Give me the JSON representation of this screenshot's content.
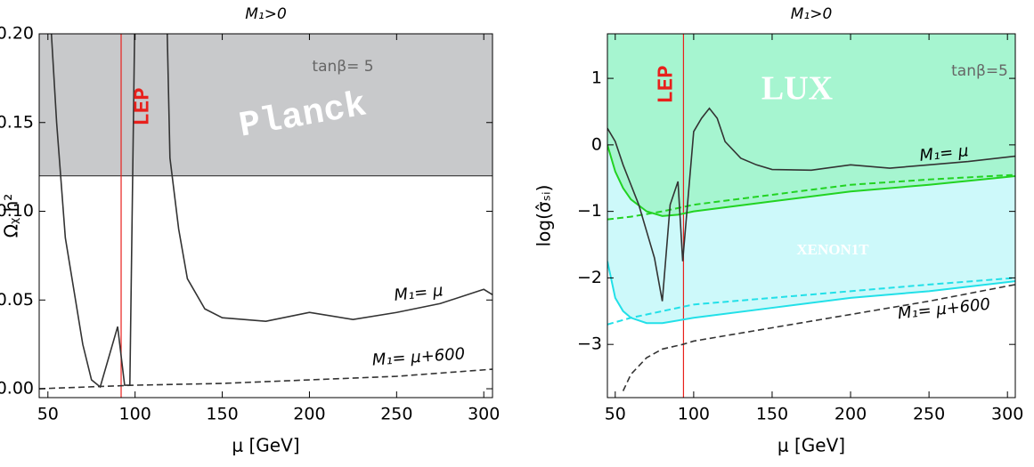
{
  "chart_data": [
    {
      "type": "line",
      "title": "M₁>0",
      "x_label": "μ [GeV]",
      "y_label": "Ωᵪ h²",
      "xlim": [
        45,
        305
      ],
      "ylim": [
        -0.005,
        0.2
      ],
      "xticks": [
        50,
        100,
        150,
        200,
        250,
        300
      ],
      "yticks": [
        {
          "value": 0,
          "label": "0.00"
        },
        {
          "value": 0.05,
          "label": "0.05"
        },
        {
          "value": 0.1,
          "label": "0.10"
        },
        {
          "value": 0.15,
          "label": "0.15"
        },
        {
          "value": 0.2,
          "label": "0.20"
        }
      ],
      "band": {
        "label": "Planck",
        "from": 0.12,
        "color": "#c8c9cb"
      },
      "lep": {
        "label": "LEP",
        "x": 92,
        "color": "#e8201c"
      },
      "annotation": "tanβ= 5",
      "series": [
        {
          "name": "M₁= μ",
          "color": "#333333",
          "dash": false,
          "x": [
            52,
            55,
            60,
            65,
            70,
            75,
            80,
            90,
            94,
            97,
            100,
            118,
            120,
            125,
            130,
            140,
            150,
            175,
            200,
            225,
            250,
            275,
            300,
            305
          ],
          "values": [
            0.2,
            0.15,
            0.085,
            0.055,
            0.025,
            0.005,
            0.001,
            0.035,
            0.002,
            0.002,
            0.22,
            0.22,
            0.13,
            0.09,
            0.062,
            0.045,
            0.04,
            0.038,
            0.043,
            0.039,
            0.043,
            0.048,
            0.056,
            0.053
          ]
        },
        {
          "name": "M₁= μ+600",
          "color": "#333333",
          "dash": true,
          "x": [
            45,
            100,
            150,
            200,
            250,
            305
          ],
          "values": [
            0.0,
            0.002,
            0.003,
            0.005,
            0.007,
            0.011
          ]
        }
      ]
    },
    {
      "type": "line",
      "title": "M₁>0",
      "x_label": "μ [GeV]",
      "y_label": "log(σ̂ₛᵢ)",
      "xlim": [
        45,
        305
      ],
      "ylim": [
        -3.8,
        1.67
      ],
      "xticks": [
        50,
        100,
        150,
        200,
        250,
        300
      ],
      "yticks": [
        {
          "value": -3,
          "label": "−3"
        },
        {
          "value": -2,
          "label": "−2"
        },
        {
          "value": -1,
          "label": "−1"
        },
        0,
        1
      ],
      "lep": {
        "label": "LEP",
        "x": 93.5,
        "color": "#e8201c"
      },
      "annotation": "tanβ=5",
      "regions": [
        {
          "label": "XENON1T"
        },
        {
          "label": "LUX"
        }
      ],
      "series": [
        {
          "color": "#22e0e8",
          "dash": false,
          "fill_to_top": "#cdf9fa",
          "x": [
            45,
            50,
            55,
            60,
            70,
            80,
            100,
            150,
            200,
            250,
            305
          ],
          "values": [
            -1.75,
            -2.3,
            -2.5,
            -2.6,
            -2.68,
            -2.68,
            -2.6,
            -2.45,
            -2.3,
            -2.2,
            -2.05
          ]
        },
        {
          "color": "#22e0e8",
          "dash": true,
          "x": [
            45,
            60,
            80,
            100,
            150,
            200,
            250,
            305
          ],
          "values": [
            -2.7,
            -2.6,
            -2.5,
            -2.4,
            -2.3,
            -2.2,
            -2.1,
            -2.0
          ]
        },
        {
          "color": "#22d322",
          "dash": false,
          "fill_to_top": "#a6f5d0",
          "x": [
            45,
            50,
            55,
            60,
            70,
            80,
            90,
            100,
            150,
            200,
            250,
            305
          ],
          "values": [
            0.0,
            -0.4,
            -0.65,
            -0.82,
            -1.0,
            -1.07,
            -1.05,
            -1.0,
            -0.85,
            -0.7,
            -0.6,
            -0.47
          ]
        },
        {
          "color": "#22d322",
          "dash": true,
          "x": [
            45,
            60,
            80,
            100,
            150,
            200,
            250,
            305
          ],
          "values": [
            -1.12,
            -1.08,
            -1.0,
            -0.9,
            -0.75,
            -0.6,
            -0.52,
            -0.45
          ]
        },
        {
          "name": "M₁= μ",
          "color": "#333333",
          "dash": false,
          "x": [
            45,
            50,
            55,
            60,
            65,
            70,
            75,
            80,
            85,
            90,
            93,
            100,
            105,
            110,
            115,
            120,
            130,
            140,
            150,
            175,
            200,
            225,
            250,
            275,
            305
          ],
          "values": [
            0.25,
            0.05,
            -0.3,
            -0.6,
            -0.9,
            -1.3,
            -1.7,
            -2.35,
            -0.9,
            -0.55,
            -1.75,
            0.2,
            0.4,
            0.55,
            0.4,
            0.05,
            -0.2,
            -0.3,
            -0.37,
            -0.38,
            -0.3,
            -0.35,
            -0.3,
            -0.25,
            -0.17
          ]
        },
        {
          "name": "M₁= μ+600",
          "color": "#333333",
          "dash": true,
          "x": [
            55,
            60,
            70,
            80,
            93,
            100,
            150,
            200,
            250,
            305
          ],
          "values": [
            -3.7,
            -3.45,
            -3.2,
            -3.07,
            -3.0,
            -2.95,
            -2.75,
            -2.55,
            -2.35,
            -2.1
          ]
        }
      ]
    }
  ]
}
